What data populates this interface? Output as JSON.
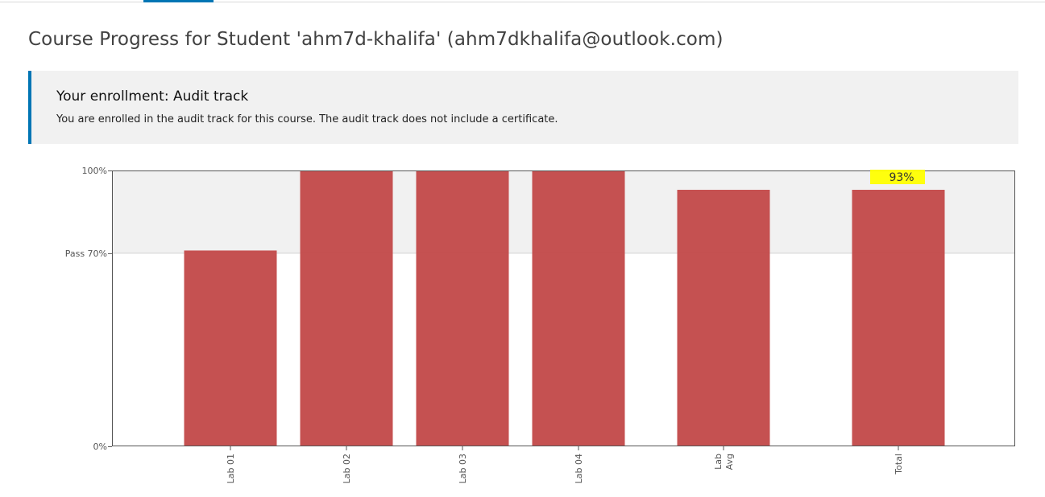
{
  "page": {
    "title": "Course Progress for Student 'ahm7d-khalifa' (ahm7dkhalifa@outlook.com)"
  },
  "enrollment": {
    "title": "Your enrollment: Audit track",
    "message": "You are enrolled in the audit track for this course. The audit track does not include a certificate."
  },
  "colors": {
    "accent": "#0075b4",
    "bar": "#c44e4e",
    "highlight": "#ffff00"
  },
  "chart_data": {
    "type": "bar",
    "categories": [
      [
        "Lab 01"
      ],
      [
        "Lab 02"
      ],
      [
        "Lab 03"
      ],
      [
        "Lab 04"
      ],
      [
        "Lab",
        "Avg"
      ],
      [
        "Total"
      ]
    ],
    "values": [
      71,
      100,
      100,
      100,
      93,
      93
    ],
    "y_ticks": [
      {
        "value": 100,
        "label": "100%"
      },
      {
        "value": 70,
        "label": "Pass 70%"
      },
      {
        "value": 0,
        "label": "0%"
      }
    ],
    "ylim": [
      0,
      100
    ],
    "pass_threshold": 70,
    "total_label": "93%",
    "grid": false
  }
}
